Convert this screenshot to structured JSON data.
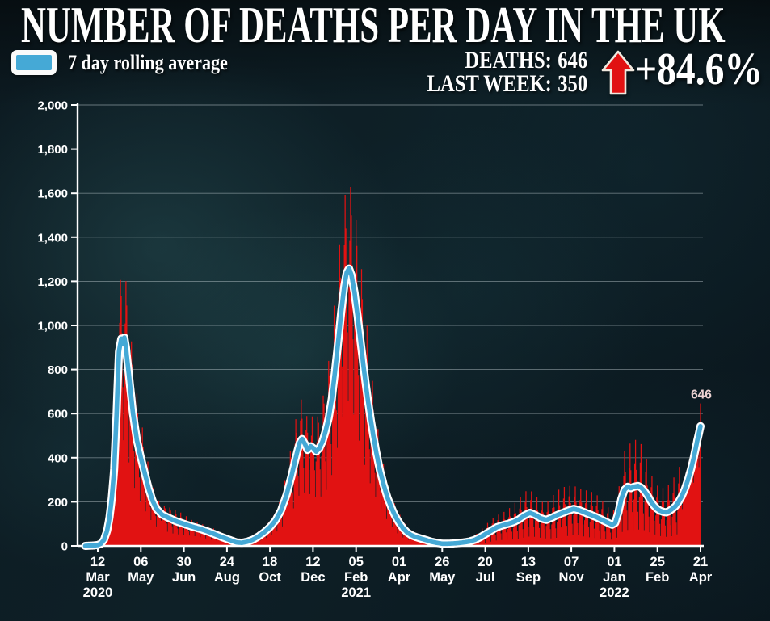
{
  "header": {
    "title": "NUMBER OF DEATHS PER DAY IN THE UK",
    "legend_label": "7 day rolling average",
    "stats": {
      "deaths_label": "DEATHS:",
      "deaths_value": "646",
      "last_week_label": "LAST WEEK:",
      "last_week_value": "350",
      "change": "+84.6%",
      "trend_icon": "arrow-up"
    }
  },
  "colors": {
    "bar_red": "#e11212",
    "line_blue": "#45a9d6",
    "line_casing": "#ffffff",
    "text": "#ffffff",
    "annotation_pink": "#ecd2d2",
    "background": "#0c1a21"
  },
  "chart_data": {
    "type": "bar",
    "title": "NUMBER OF DEATHS PER DAY IN THE UK",
    "xlabel": "",
    "ylabel": "",
    "ylim": [
      0,
      2000
    ],
    "grid": true,
    "legend_position": "top-left",
    "x_axis": {
      "start_date": "12 Mar 2020",
      "end_date": "21 Apr 2022",
      "tick_interval_days": 55
    },
    "series": [
      {
        "name": "Daily deaths",
        "kind": "bars",
        "color": "#e11212"
      },
      {
        "name": "7 day rolling average",
        "kind": "line",
        "color": "#45a9d6",
        "casing": "#ffffff"
      }
    ],
    "yticks": [
      [
        0,
        "0"
      ],
      [
        200,
        "200"
      ],
      [
        400,
        "400"
      ],
      [
        600,
        "600"
      ],
      [
        800,
        "800"
      ],
      [
        1000,
        "1,000"
      ],
      [
        1200,
        "1,200"
      ],
      [
        1400,
        "1,400"
      ],
      [
        1600,
        "1,600"
      ],
      [
        1800,
        "1,800"
      ],
      [
        2000,
        "2,000"
      ]
    ],
    "xticks": [
      {
        "d": 0,
        "day": "12",
        "month": "Mar",
        "year": "2020"
      },
      {
        "d": 55,
        "day": "06",
        "month": "May"
      },
      {
        "d": 110,
        "day": "30",
        "month": "Jun"
      },
      {
        "d": 165,
        "day": "24",
        "month": "Aug"
      },
      {
        "d": 220,
        "day": "18",
        "month": "Oct"
      },
      {
        "d": 275,
        "day": "12",
        "month": "Dec"
      },
      {
        "d": 330,
        "day": "05",
        "month": "Feb",
        "year": "2021"
      },
      {
        "d": 385,
        "day": "01",
        "month": "Apr"
      },
      {
        "d": 440,
        "day": "26",
        "month": "May"
      },
      {
        "d": 495,
        "day": "20",
        "month": "Jul"
      },
      {
        "d": 550,
        "day": "13",
        "month": "Sep"
      },
      {
        "d": 605,
        "day": "07",
        "month": "Nov"
      },
      {
        "d": 660,
        "day": "01",
        "month": "Jan",
        "year": "2022"
      },
      {
        "d": 715,
        "day": "25",
        "month": "Feb"
      },
      {
        "d": 770,
        "day": "21",
        "month": "Apr"
      }
    ],
    "rolling_avg": [
      [
        -16,
        0
      ],
      [
        -10,
        1
      ],
      [
        -5,
        2
      ],
      [
        0,
        4
      ],
      [
        4,
        10
      ],
      [
        8,
        28
      ],
      [
        12,
        70
      ],
      [
        15,
        130
      ],
      [
        18,
        220
      ],
      [
        21,
        350
      ],
      [
        24,
        600
      ],
      [
        27,
        880
      ],
      [
        30,
        940
      ],
      [
        32,
        915
      ],
      [
        34,
        945
      ],
      [
        36,
        900
      ],
      [
        39,
        800
      ],
      [
        42,
        700
      ],
      [
        45,
        600
      ],
      [
        50,
        480
      ],
      [
        55,
        400
      ],
      [
        60,
        330
      ],
      [
        65,
        260
      ],
      [
        70,
        205
      ],
      [
        75,
        168
      ],
      [
        82,
        142
      ],
      [
        90,
        128
      ],
      [
        100,
        112
      ],
      [
        110,
        100
      ],
      [
        120,
        88
      ],
      [
        130,
        78
      ],
      [
        140,
        66
      ],
      [
        150,
        52
      ],
      [
        160,
        38
      ],
      [
        170,
        25
      ],
      [
        177,
        16
      ],
      [
        184,
        14
      ],
      [
        191,
        19
      ],
      [
        198,
        28
      ],
      [
        205,
        42
      ],
      [
        212,
        60
      ],
      [
        220,
        85
      ],
      [
        227,
        115
      ],
      [
        234,
        160
      ],
      [
        241,
        230
      ],
      [
        247,
        310
      ],
      [
        251,
        370
      ],
      [
        255,
        430
      ],
      [
        258,
        468
      ],
      [
        261,
        485
      ],
      [
        265,
        460
      ],
      [
        268,
        435
      ],
      [
        272,
        452
      ],
      [
        275,
        445
      ],
      [
        279,
        428
      ],
      [
        283,
        443
      ],
      [
        287,
        473
      ],
      [
        291,
        520
      ],
      [
        295,
        580
      ],
      [
        299,
        668
      ],
      [
        303,
        790
      ],
      [
        307,
        920
      ],
      [
        311,
        1060
      ],
      [
        315,
        1180
      ],
      [
        318,
        1240
      ],
      [
        321,
        1258
      ],
      [
        324,
        1230
      ],
      [
        328,
        1150
      ],
      [
        332,
        1040
      ],
      [
        336,
        920
      ],
      [
        340,
        800
      ],
      [
        344,
        690
      ],
      [
        348,
        590
      ],
      [
        352,
        500
      ],
      [
        356,
        420
      ],
      [
        360,
        350
      ],
      [
        365,
        280
      ],
      [
        370,
        220
      ],
      [
        375,
        175
      ],
      [
        380,
        135
      ],
      [
        385,
        105
      ],
      [
        390,
        80
      ],
      [
        395,
        62
      ],
      [
        400,
        50
      ],
      [
        405,
        42
      ],
      [
        412,
        34
      ],
      [
        419,
        27
      ],
      [
        426,
        19
      ],
      [
        433,
        14
      ],
      [
        440,
        10
      ],
      [
        447,
        10
      ],
      [
        454,
        11
      ],
      [
        461,
        13
      ],
      [
        468,
        16
      ],
      [
        475,
        20
      ],
      [
        482,
        28
      ],
      [
        489,
        40
      ],
      [
        496,
        55
      ],
      [
        503,
        70
      ],
      [
        510,
        85
      ],
      [
        517,
        93
      ],
      [
        524,
        100
      ],
      [
        531,
        108
      ],
      [
        538,
        120
      ],
      [
        545,
        138
      ],
      [
        552,
        150
      ],
      [
        559,
        140
      ],
      [
        566,
        125
      ],
      [
        573,
        118
      ],
      [
        580,
        128
      ],
      [
        587,
        140
      ],
      [
        594,
        150
      ],
      [
        601,
        160
      ],
      [
        608,
        168
      ],
      [
        615,
        162
      ],
      [
        622,
        152
      ],
      [
        629,
        142
      ],
      [
        636,
        132
      ],
      [
        643,
        120
      ],
      [
        650,
        108
      ],
      [
        657,
        96
      ],
      [
        661,
        104
      ],
      [
        665,
        150
      ],
      [
        669,
        215
      ],
      [
        673,
        255
      ],
      [
        677,
        268
      ],
      [
        681,
        262
      ],
      [
        685,
        268
      ],
      [
        690,
        272
      ],
      [
        694,
        265
      ],
      [
        698,
        250
      ],
      [
        702,
        230
      ],
      [
        706,
        205
      ],
      [
        710,
        185
      ],
      [
        714,
        170
      ],
      [
        718,
        160
      ],
      [
        722,
        155
      ],
      [
        726,
        152
      ],
      [
        730,
        158
      ],
      [
        734,
        168
      ],
      [
        738,
        180
      ],
      [
        742,
        200
      ],
      [
        746,
        225
      ],
      [
        750,
        258
      ],
      [
        754,
        300
      ],
      [
        758,
        350
      ],
      [
        762,
        410
      ],
      [
        766,
        480
      ],
      [
        770,
        543
      ]
    ],
    "bars": {
      "weekly_patterns": [
        [
          1.15,
          1.38,
          1.24,
          1.02,
          0.75,
          0.5,
          0.92
        ],
        [
          1.35,
          1.7,
          1.25,
          1.0,
          0.6,
          0.28,
          0.8
        ],
        [
          1.12,
          1.19,
          1.15,
          1.05,
          0.85,
          0.7,
          1.0
        ]
      ],
      "pattern_breaks": [
        430,
        745
      ],
      "last_value": 646,
      "max_daily_value": 1820
    },
    "annotation": {
      "text": "646",
      "d": 770,
      "v": 646
    }
  }
}
